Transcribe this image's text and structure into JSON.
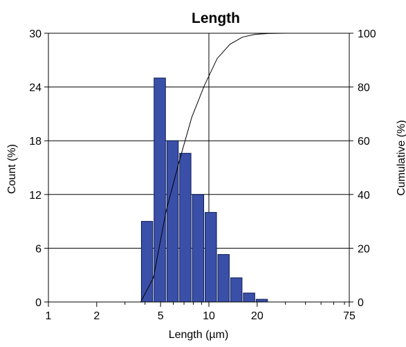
{
  "chart_data": {
    "type": "bar",
    "title": "Length",
    "xlabel": "Length (µm)",
    "ylabel": "Count (%)",
    "y2label": "Cumulative (%)",
    "x_scale": "log",
    "xlim": [
      1,
      75
    ],
    "ylim": [
      0,
      30
    ],
    "y2lim": [
      0,
      100
    ],
    "x_ticks": [
      1,
      2,
      5,
      10,
      20,
      75
    ],
    "x_tick_labels": [
      "1",
      "2",
      "5",
      "10",
      "20",
      "75"
    ],
    "x_minor_ticks": [
      3,
      4,
      6,
      7,
      8,
      9,
      30,
      40,
      50,
      60,
      70
    ],
    "y_ticks": [
      0,
      6,
      12,
      18,
      24,
      30
    ],
    "y_tick_labels": [
      "0",
      "6",
      "12",
      "18",
      "24",
      "30"
    ],
    "y2_ticks": [
      0,
      20,
      40,
      60,
      80,
      100
    ],
    "y2_tick_labels": [
      "0",
      "20",
      "40",
      "60",
      "80",
      "100"
    ],
    "grid": "horizontal at y ticks, vertical at x=10",
    "bar_color": "#3a4fa8",
    "bins": [
      {
        "x0": 3.76,
        "x1": 4.51,
        "value": 9.0
      },
      {
        "x0": 4.51,
        "x1": 5.42,
        "value": 25.0
      },
      {
        "x0": 5.42,
        "x1": 6.51,
        "value": 18.0
      },
      {
        "x0": 6.51,
        "x1": 7.81,
        "value": 16.6
      },
      {
        "x0": 7.81,
        "x1": 9.38,
        "value": 12.0
      },
      {
        "x0": 9.38,
        "x1": 11.27,
        "value": 10.0
      },
      {
        "x0": 11.27,
        "x1": 13.53,
        "value": 5.3
      },
      {
        "x0": 13.53,
        "x1": 16.25,
        "value": 2.7
      },
      {
        "x0": 16.25,
        "x1": 19.51,
        "value": 1.0
      },
      {
        "x0": 19.51,
        "x1": 23.42,
        "value": 0.3
      }
    ],
    "series": [
      {
        "type": "line",
        "axis": "right",
        "x": [
          1,
          3.76,
          4.51,
          5.42,
          6.51,
          7.81,
          9.38,
          11.27,
          13.53,
          16.25,
          19.51,
          23.42,
          30,
          75
        ],
        "values": [
          0,
          0,
          9,
          34,
          52,
          68.6,
          80.6,
          90.6,
          95.9,
          98.6,
          99.6,
          99.9,
          100,
          100
        ]
      }
    ]
  }
}
